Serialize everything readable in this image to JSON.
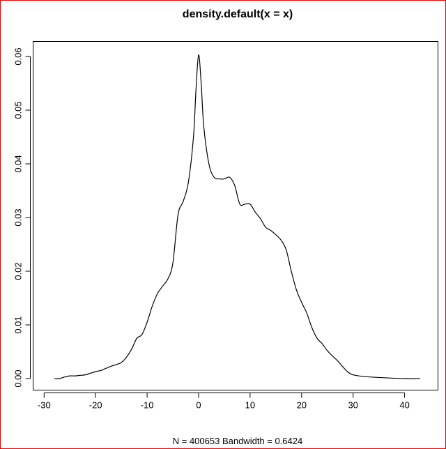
{
  "chart_data": {
    "type": "line",
    "title": "density.default(x = x)",
    "xlabel": "N = 400653   Bandwidth = 0.6424",
    "ylabel": "",
    "xlim": [
      -28,
      43
    ],
    "ylim": [
      0,
      0.06
    ],
    "grid": false,
    "x_ticks": [
      -30,
      -20,
      -10,
      0,
      10,
      20,
      30,
      40
    ],
    "x_tick_labels": [
      "-30",
      "-20",
      "-10",
      "0",
      "10",
      "20",
      "30",
      "40"
    ],
    "y_ticks": [
      0.0,
      0.01,
      0.02,
      0.03,
      0.04,
      0.05,
      0.06
    ],
    "y_tick_labels": [
      "0.00",
      "0.01",
      "0.02",
      "0.03",
      "0.04",
      "0.05",
      "0.06"
    ],
    "series": [
      {
        "x": [
          -28,
          -27,
          -26,
          -25,
          -24,
          -23,
          -22,
          -21,
          -20,
          -19,
          -18,
          -17,
          -16,
          -15,
          -14,
          -13,
          -12,
          -11,
          -10,
          -9,
          -8,
          -7,
          -6,
          -5,
          -4,
          -3,
          -2,
          -1,
          -0.5,
          0,
          0.5,
          1,
          2,
          3,
          4,
          5,
          6,
          7,
          8,
          9,
          10,
          11,
          12,
          13,
          14,
          15,
          16,
          17,
          18,
          19,
          20,
          21,
          22,
          23,
          24,
          25,
          26,
          27,
          28,
          29,
          30,
          32,
          35,
          40,
          43
        ],
        "y": [
          0.0,
          0.0,
          0.0003,
          0.0005,
          0.0005,
          0.0006,
          0.0007,
          0.001,
          0.0013,
          0.0015,
          0.0019,
          0.0023,
          0.0026,
          0.003,
          0.004,
          0.0055,
          0.0075,
          0.0082,
          0.0105,
          0.0135,
          0.0158,
          0.0172,
          0.0185,
          0.0215,
          0.0305,
          0.033,
          0.0365,
          0.045,
          0.054,
          0.0603,
          0.055,
          0.047,
          0.04,
          0.0375,
          0.0372,
          0.0372,
          0.0375,
          0.036,
          0.0325,
          0.0325,
          0.0325,
          0.031,
          0.0298,
          0.0282,
          0.0276,
          0.0268,
          0.0258,
          0.024,
          0.02,
          0.0165,
          0.0142,
          0.0122,
          0.0095,
          0.0075,
          0.0065,
          0.0052,
          0.0042,
          0.0033,
          0.0022,
          0.0012,
          0.0007,
          0.0004,
          0.0002,
          0.0,
          0.0
        ]
      }
    ]
  }
}
